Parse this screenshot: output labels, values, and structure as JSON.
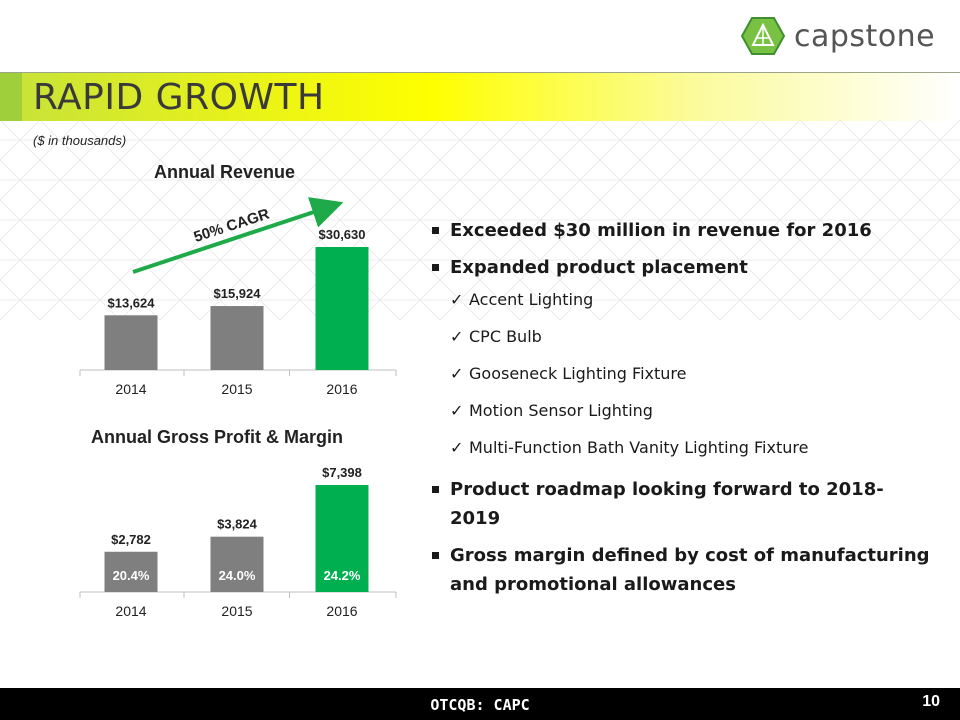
{
  "logo": {
    "text": "capstone",
    "colors": {
      "green": "#79c143",
      "dark": "#3f8f2f"
    }
  },
  "title": "RAPID GROWTH",
  "units_note": "($ in thousands)",
  "colors": {
    "gray_bar": "#7f7f7f",
    "green_bar": "#00b050",
    "arrow": "#1faa4a"
  },
  "chart_data": [
    {
      "type": "bar",
      "title": "Annual Revenue",
      "categories": [
        "2014",
        "2015",
        "2016"
      ],
      "values": [
        13624,
        15924,
        30630
      ],
      "value_labels": [
        "$13,624",
        "$15,924",
        "$30,630"
      ],
      "highlight": [
        false,
        false,
        true
      ],
      "ylim": [
        0,
        30630
      ],
      "annotation": "50% CAGR"
    },
    {
      "type": "bar",
      "title": "Annual Gross Profit & Margin",
      "categories": [
        "2014",
        "2015",
        "2016"
      ],
      "values": [
        2782,
        3824,
        7398
      ],
      "value_labels": [
        "$2,782",
        "$3,824",
        "$7,398"
      ],
      "margins": [
        "20.4%",
        "24.0%",
        "24.2%"
      ],
      "highlight": [
        false,
        false,
        true
      ],
      "ylim": [
        0,
        7398
      ]
    }
  ],
  "bullets": [
    {
      "level": 1,
      "text": "Exceeded $30 million in revenue for 2016"
    },
    {
      "level": 1,
      "text": "Expanded product placement"
    },
    {
      "level": 2,
      "text": "Accent Lighting"
    },
    {
      "level": 2,
      "text": "CPC Bulb"
    },
    {
      "level": 2,
      "text": "Gooseneck Lighting Fixture"
    },
    {
      "level": 2,
      "text": "Motion Sensor Lighting"
    },
    {
      "level": 2,
      "text": "Multi-Function Bath Vanity Lighting Fixture"
    },
    {
      "level": 1,
      "text": "Product roadmap looking forward to 2018-2019"
    },
    {
      "level": 1,
      "text": "Gross margin defined by cost of manufacturing and promotional allowances"
    }
  ],
  "check_glyph": "✓",
  "footer": {
    "ticker": "OTCQB: CAPC",
    "page_number": "10"
  }
}
